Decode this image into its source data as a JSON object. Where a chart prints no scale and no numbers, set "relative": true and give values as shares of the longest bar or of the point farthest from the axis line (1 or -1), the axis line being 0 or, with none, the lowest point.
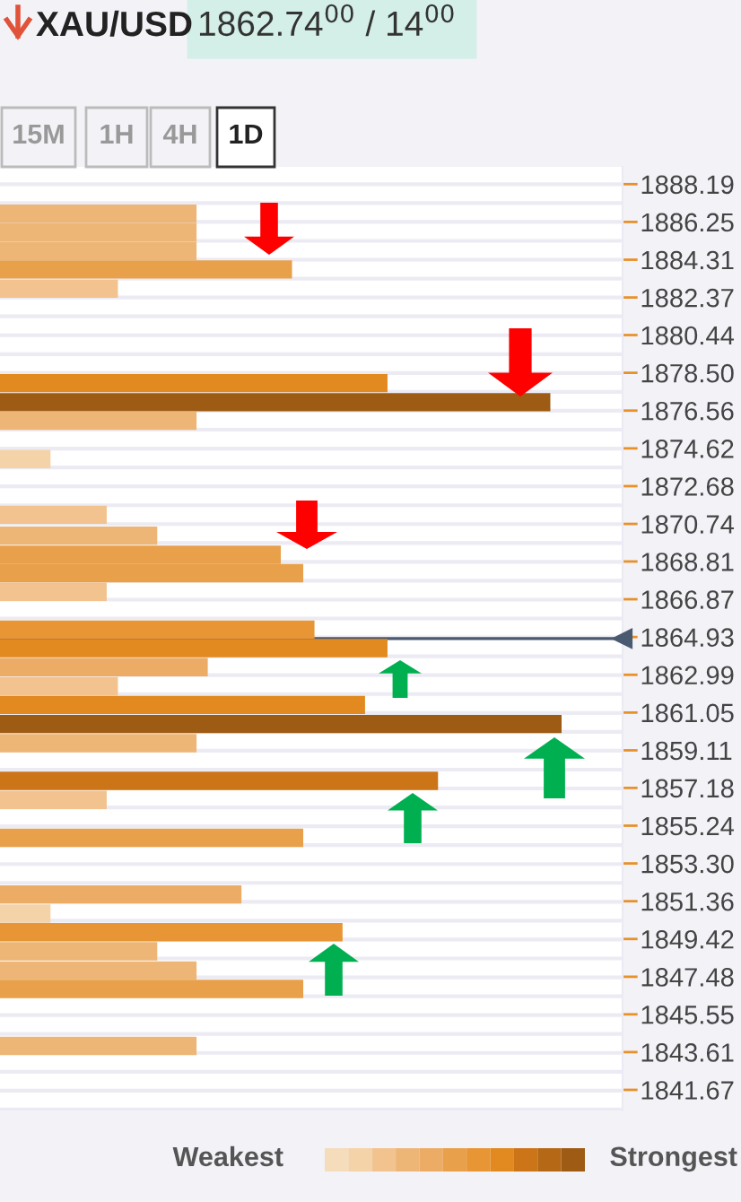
{
  "chart_data": {
    "type": "bar",
    "orientation": "horizontal",
    "relative": true,
    "title": "XAU/USD",
    "subtitle": "1862.74$^{00}$ / 14$^{00}$",
    "annotations": [
      "15M",
      "1H",
      "4H",
      "1D",
      "Weakest",
      "Strongest"
    ],
    "x": [
      1886.67,
      1885.72,
      1884.76,
      1883.81,
      1882.82,
      1877.97,
      1876.99,
      1876.04,
      1874.07,
      1871.21,
      1870.14,
      1869.15,
      1868.21,
      1867.25,
      1865.31,
      1864.36,
      1863.38,
      1862.4,
      1861.44,
      1860.46,
      1859.48,
      1857.54,
      1856.56,
      1854.62,
      1851.71,
      1850.72,
      1849.77,
      1848.79,
      1847.8,
      1846.85,
      1843.93
    ],
    "values": [
      0.35,
      0.35,
      0.35,
      0.52,
      0.21,
      0.69,
      0.98,
      0.35,
      0.09,
      0.19,
      0.28,
      0.5,
      0.54,
      0.19,
      0.56,
      0.69,
      0.37,
      0.21,
      0.65,
      1,
      0.35,
      0.78,
      0.19,
      0.54,
      0.43,
      0.09,
      0.61,
      0.28,
      0.35,
      0.54,
      0.35
    ],
    "colors": [
      "#edb676",
      "#edb676",
      "#edb676",
      "#e8a04a",
      "#f2c38f",
      "#e2891f",
      "#9e5b14",
      "#edb676",
      "#f5d3a9",
      "#f2c38f",
      "#edb676",
      "#e8a04a",
      "#e8a04a",
      "#f2c38f",
      "#e89535",
      "#e2891f",
      "#edac66",
      "#f2c38f",
      "#e2891f",
      "#9e5b14",
      "#edb676",
      "#cc7418",
      "#f2c38f",
      "#e8a04a",
      "#edac66",
      "#f5d3a9",
      "#e89535",
      "#edb676",
      "#edb676",
      "#e8a04a",
      "#edb676"
    ],
    "ylim": [
      1840.61,
      1889.08
    ],
    "yticks": [
      {
        "value": 1888.19,
        "label": "1888.19"
      },
      {
        "value": 1886.25,
        "label": "1886.25"
      },
      {
        "value": 1884.31,
        "label": "1884.31"
      },
      {
        "value": 1882.37,
        "label": "1882.37"
      },
      {
        "value": 1880.44,
        "label": "1880.44"
      },
      {
        "value": 1878.5,
        "label": "1878.50"
      },
      {
        "value": 1876.56,
        "label": "1876.56"
      },
      {
        "value": 1874.62,
        "label": "1874.62"
      },
      {
        "value": 1872.68,
        "label": "1872.68"
      },
      {
        "value": 1870.74,
        "label": "1870.74"
      },
      {
        "value": 1868.81,
        "label": "1868.81"
      },
      {
        "value": 1866.87,
        "label": "1866.87"
      },
      {
        "value": 1864.93,
        "label": "1864.93"
      },
      {
        "value": 1862.99,
        "label": "1862.99"
      },
      {
        "value": 1861.05,
        "label": "1861.05"
      },
      {
        "value": 1859.11,
        "label": "1859.11"
      },
      {
        "value": 1857.18,
        "label": "1857.18"
      },
      {
        "value": 1855.24,
        "label": "1855.24"
      },
      {
        "value": 1853.3,
        "label": "1853.30"
      },
      {
        "value": 1851.36,
        "label": "1851.36"
      },
      {
        "value": 1849.42,
        "label": "1849.42"
      },
      {
        "value": 1847.48,
        "label": "1847.48"
      },
      {
        "value": 1845.55,
        "label": "1845.55"
      },
      {
        "value": 1843.61,
        "label": "1843.61"
      },
      {
        "value": 1841.67,
        "label": "1841.67"
      }
    ],
    "ref_lines": [
      {
        "axis": "y",
        "value": 1864.85,
        "color": "#4a5a70"
      }
    ],
    "grid": "y"
  }
}
